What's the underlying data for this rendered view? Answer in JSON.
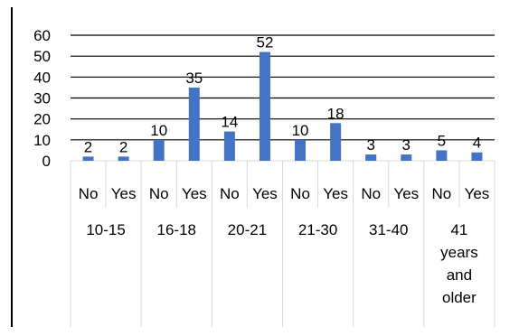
{
  "chart_data": {
    "type": "bar",
    "title": "",
    "xlabel": "",
    "ylabel": "",
    "ylim": [
      0,
      60
    ],
    "yticks": [
      0,
      10,
      20,
      30,
      40,
      50,
      60
    ],
    "grid": true,
    "legend": "none",
    "bar_color": "#4472C4",
    "groups": [
      {
        "label_lines": [
          "10-15"
        ],
        "categories": [
          "No",
          "Yes"
        ],
        "values": [
          2,
          2
        ]
      },
      {
        "label_lines": [
          "16-18"
        ],
        "categories": [
          "No",
          "Yes"
        ],
        "values": [
          10,
          35
        ]
      },
      {
        "label_lines": [
          "20-21"
        ],
        "categories": [
          "No",
          "Yes"
        ],
        "values": [
          14,
          52
        ]
      },
      {
        "label_lines": [
          "21-30"
        ],
        "categories": [
          "No",
          "Yes"
        ],
        "values": [
          10,
          18
        ]
      },
      {
        "label_lines": [
          "31-40"
        ],
        "categories": [
          "No",
          "Yes"
        ],
        "values": [
          3,
          3
        ]
      },
      {
        "label_lines": [
          "41",
          "years",
          "and",
          "older"
        ],
        "categories": [
          "No",
          "Yes"
        ],
        "values": [
          5,
          4
        ]
      }
    ]
  }
}
